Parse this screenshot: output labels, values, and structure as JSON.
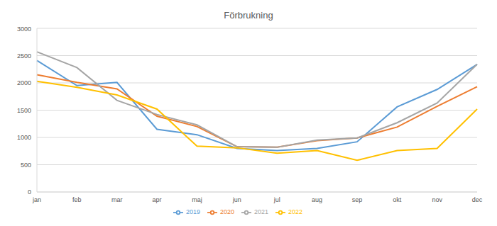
{
  "chart_data": {
    "type": "line",
    "title": "Förbrukning",
    "categories": [
      "jan",
      "feb",
      "mar",
      "apr",
      "maj",
      "jun",
      "jul",
      "aug",
      "sep",
      "okt",
      "nov",
      "dec"
    ],
    "series": [
      {
        "name": "2019",
        "color": "#5b9bd5",
        "values": [
          2410,
          1950,
          2010,
          1150,
          1050,
          800,
          760,
          800,
          920,
          1560,
          1880,
          2340
        ]
      },
      {
        "name": "2020",
        "color": "#ed7d31",
        "values": [
          2150,
          2010,
          1890,
          1390,
          1200,
          830,
          820,
          940,
          990,
          1190,
          1570,
          1930
        ]
      },
      {
        "name": "2021",
        "color": "#a5a5a5",
        "values": [
          2570,
          2280,
          1680,
          1420,
          1230,
          830,
          820,
          950,
          990,
          1270,
          1630,
          2340
        ]
      },
      {
        "name": "2022",
        "color": "#ffc000",
        "values": [
          2030,
          1920,
          1780,
          1520,
          840,
          810,
          710,
          760,
          580,
          760,
          800,
          1520
        ]
      }
    ],
    "ylim": [
      0,
      3000
    ],
    "yticks": [
      0,
      500,
      1000,
      1500,
      2000,
      2500,
      3000
    ],
    "grid": true,
    "legend": "bottom"
  }
}
